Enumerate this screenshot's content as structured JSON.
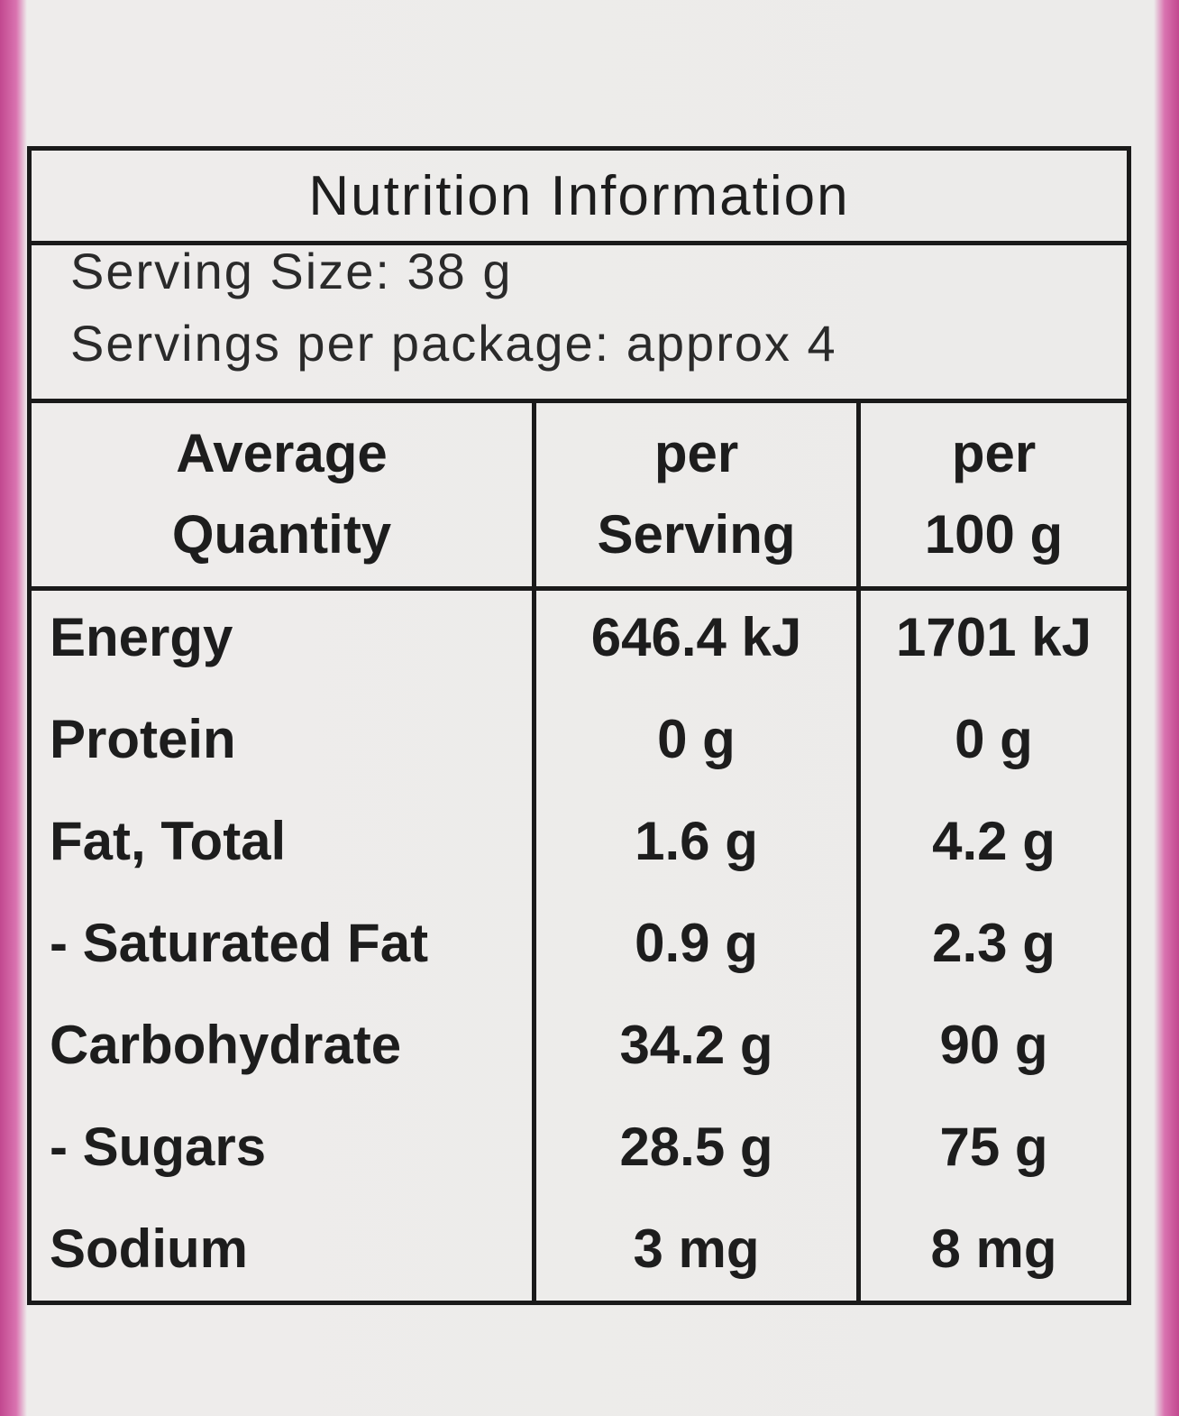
{
  "title": "Nutrition Information",
  "serving_size": "Serving Size: 38 g",
  "servings_per_package": "Servings per package: approx 4",
  "table": {
    "header": [
      [
        "Average",
        "Quantity"
      ],
      [
        "per",
        "Serving"
      ],
      [
        "per",
        "100 g"
      ]
    ],
    "rows": [
      [
        "Energy",
        "646.4 kJ",
        "1701 kJ"
      ],
      [
        "Protein",
        "0 g",
        "0 g"
      ],
      [
        "Fat, Total",
        "1.6 g",
        "4.2 g"
      ],
      [
        "- Saturated Fat",
        "0.9 g",
        "2.3 g"
      ],
      [
        "Carbohydrate",
        "34.2 g",
        "90 g"
      ],
      [
        "- Sugars",
        "28.5 g",
        "75 g"
      ],
      [
        "Sodium",
        "3 mg",
        "8 mg"
      ]
    ]
  }
}
